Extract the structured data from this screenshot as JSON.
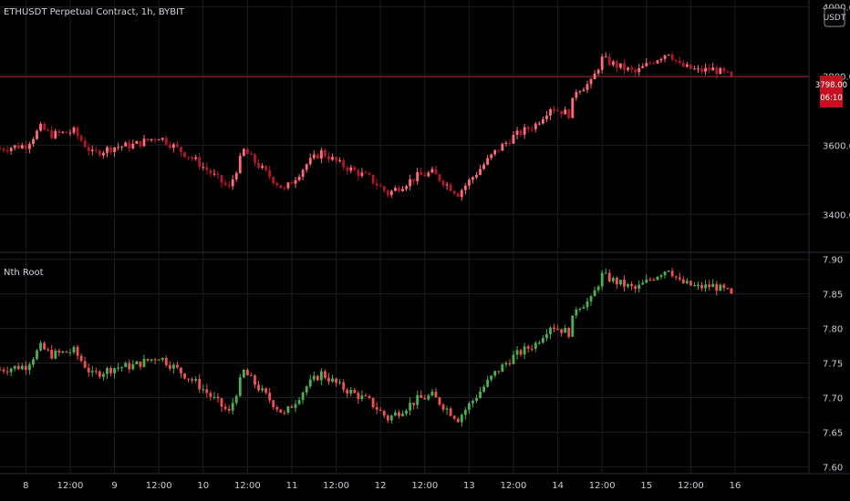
{
  "header": {
    "symbol_title": "ETHUSDT Perpetual Contract, 1h, BYBIT",
    "currency_button": "USDT",
    "indicator_title": "Nth Root"
  },
  "price_badge": {
    "value": "3798.00",
    "countdown": "06:10"
  },
  "colors": {
    "background": "#000000",
    "grid": "#1a1d23",
    "up": "#ff6b7a",
    "down": "#b0172c",
    "ind_up": "#4caf50",
    "ind_down": "#ef5350",
    "price_line": "#9e1b1b",
    "badge": "#c2121f",
    "separator": "#2a2e39"
  },
  "chart_data": [
    {
      "type": "candlestick",
      "title": "ETHUSDT Perpetual Contract, 1h, BYBIT",
      "y_axis_ticks": [
        "4000.00",
        "3800.00",
        "3600.00",
        "3400.00"
      ],
      "y_tick_values": [
        4000,
        3800,
        3600,
        3400
      ],
      "ylim": [
        3290,
        4020
      ],
      "last_price": 3798,
      "x_axis_ticks": [
        "8",
        "12:00",
        "9",
        "12:00",
        "10",
        "12:00",
        "11",
        "12:00",
        "12",
        "12:00",
        "13",
        "12:00",
        "14",
        "12:00",
        "15",
        "12:00",
        "16"
      ],
      "x_tick_hours": [
        0,
        12,
        24,
        36,
        48,
        60,
        72,
        84,
        96,
        108,
        120,
        132,
        144,
        156,
        168,
        180,
        192
      ],
      "x_range_hours": [
        -7,
        212
      ],
      "series_keypoints": {
        "hours": [
          -7,
          0,
          4,
          7,
          13,
          18,
          24,
          29,
          36,
          41,
          46,
          55,
          59,
          64,
          70,
          76,
          80,
          85,
          93,
          98,
          106,
          110,
          117,
          122,
          127,
          132,
          138,
          142,
          147,
          149,
          153,
          156,
          160,
          165,
          170,
          174,
          177,
          182,
          186,
          191
        ],
        "close": [
          3590,
          3600,
          3650,
          3630,
          3640,
          3575,
          3595,
          3600,
          3625,
          3590,
          3555,
          3475,
          3585,
          3530,
          3470,
          3545,
          3580,
          3545,
          3505,
          3460,
          3510,
          3520,
          3460,
          3520,
          3580,
          3625,
          3660,
          3710,
          3690,
          3760,
          3780,
          3850,
          3830,
          3810,
          3845,
          3870,
          3830,
          3815,
          3820,
          3798
        ]
      }
    },
    {
      "type": "candlestick",
      "title": "Nth Root",
      "y_axis_ticks": [
        "7.90",
        "7.85",
        "7.80",
        "7.75",
        "7.70",
        "7.65",
        "7.60"
      ],
      "y_tick_values": [
        7.9,
        7.85,
        7.8,
        7.75,
        7.7,
        7.65,
        7.6
      ],
      "ylim": [
        7.59,
        7.91
      ],
      "note_transform": "value = close ^ (1/4)"
    }
  ]
}
